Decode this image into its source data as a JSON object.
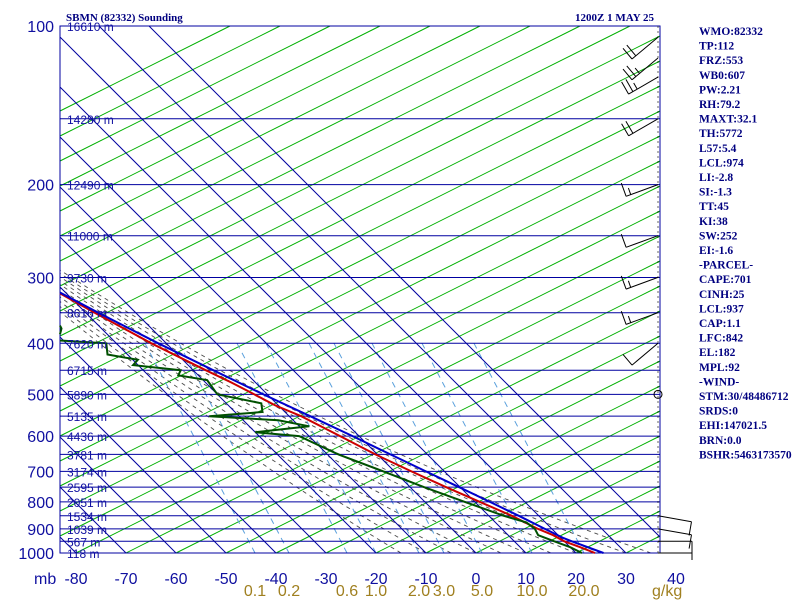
{
  "chart_data": {
    "type": "line",
    "title": "SBMN (82332) Sounding",
    "valid_time": "1200Z  1 MAY 25",
    "pressure_axis_label": "mb",
    "pressure_ticks": [
      "100",
      "200",
      "300",
      "400",
      "500",
      "600",
      "700",
      "800",
      "900",
      "1000"
    ],
    "temperature_ticks": [
      "-80",
      "-70",
      "-60",
      "-50",
      "-40",
      "-30",
      "-20",
      "-10",
      "0",
      "10",
      "20",
      "30",
      "40"
    ],
    "mixing_ratio_labels": [
      "0.1",
      "0.2",
      "0.6",
      "1.0",
      "2.0",
      "3.0",
      "5.0",
      "10.0",
      "20.0"
    ],
    "mixing_ratio_unit": "g/kg",
    "height_labels": [
      {
        "p": 100,
        "text": "16610 m"
      },
      {
        "p": 150,
        "text": "14280 m"
      },
      {
        "p": 200,
        "text": "12490 m"
      },
      {
        "p": 250,
        "text": "11000 m"
      },
      {
        "p": 300,
        "text": "9730 m"
      },
      {
        "p": 350,
        "text": "8616 m"
      },
      {
        "p": 400,
        "text": "7620 m"
      },
      {
        "p": 450,
        "text": "6715 m"
      },
      {
        "p": 500,
        "text": "5890 m"
      },
      {
        "p": 550,
        "text": "5135 m"
      },
      {
        "p": 600,
        "text": "4436 m"
      },
      {
        "p": 650,
        "text": "3781 m"
      },
      {
        "p": 700,
        "text": "3174 m"
      },
      {
        "p": 750,
        "text": "2595 m"
      },
      {
        "p": 800,
        "text": "2051 m"
      },
      {
        "p": 850,
        "text": "1534 m"
      },
      {
        "p": 900,
        "text": "1039 m"
      },
      {
        "p": 950,
        "text": "567 m"
      },
      {
        "p": 1000,
        "text": "118 m"
      }
    ],
    "xlim": [
      -80,
      40
    ],
    "ylim": [
      100,
      1000
    ],
    "series": [
      {
        "key": "temperature",
        "color": "#cc0000",
        "points": [
          [
            1000,
            23.8
          ],
          [
            975,
            22.0
          ],
          [
            950,
            20.0
          ],
          [
            925,
            19.0
          ],
          [
            900,
            17.2
          ],
          [
            850,
            14.6
          ],
          [
            800,
            11.0
          ],
          [
            750,
            7.2
          ],
          [
            700,
            3.4
          ],
          [
            650,
            -0.4
          ],
          [
            600,
            -3.8
          ],
          [
            550,
            -7.6
          ],
          [
            525,
            -10.6
          ],
          [
            500,
            -12.6
          ],
          [
            475,
            -14.8
          ],
          [
            450,
            -17.5
          ],
          [
            400,
            -23.0
          ],
          [
            350,
            -28.2
          ],
          [
            300,
            -33.8
          ],
          [
            250,
            -41.5
          ],
          [
            200,
            -49.2
          ],
          [
            150,
            -58.0
          ],
          [
            100,
            -73.0
          ]
        ]
      },
      {
        "key": "dewpoint",
        "color": "#005000",
        "points": [
          [
            1000,
            21.2
          ],
          [
            975,
            20.0
          ],
          [
            950,
            18.0
          ],
          [
            925,
            16.0
          ],
          [
            900,
            16.6
          ],
          [
            875,
            16.2
          ],
          [
            850,
            13.0
          ],
          [
            800,
            8.0
          ],
          [
            750,
            2.8
          ],
          [
            700,
            -2.2
          ],
          [
            650,
            -7.8
          ],
          [
            600,
            -12.0
          ],
          [
            590,
            -20.0
          ],
          [
            575,
            -8.0
          ],
          [
            560,
            -13.0
          ],
          [
            550,
            -26.0
          ],
          [
            540,
            -14.5
          ],
          [
            520,
            -13.0
          ],
          [
            500,
            -20.0
          ],
          [
            470,
            -19.2
          ],
          [
            460,
            -24.0
          ],
          [
            450,
            -22.5
          ],
          [
            440,
            -31.0
          ],
          [
            430,
            -29.0
          ],
          [
            420,
            -34.0
          ],
          [
            400,
            -32.0
          ],
          [
            395,
            -41.0
          ],
          [
            375,
            -38.0
          ],
          [
            350,
            -36.5
          ],
          [
            330,
            -41.5
          ],
          [
            310,
            -39.0
          ],
          [
            300,
            -41.0
          ],
          [
            290,
            -40.8
          ],
          [
            270,
            -44.0
          ],
          [
            255,
            -53.0
          ],
          [
            250,
            -55.0
          ],
          [
            240,
            -57.5
          ],
          [
            235,
            -58.5
          ],
          [
            215,
            -59.0
          ],
          [
            200,
            -63.5
          ],
          [
            190,
            -67.0
          ],
          [
            180,
            -70.0
          ],
          [
            165,
            -69.5
          ],
          [
            150,
            -70.5
          ],
          [
            135,
            -74.2
          ],
          [
            120,
            -76.5
          ],
          [
            115,
            -78.0
          ]
        ]
      },
      {
        "key": "parcel",
        "color": "#0000cc",
        "points": [
          [
            1000,
            25.5
          ],
          [
            950,
            21.5
          ],
          [
            937,
            20.5
          ],
          [
            900,
            18.6
          ],
          [
            850,
            16.0
          ],
          [
            800,
            13.0
          ],
          [
            750,
            9.8
          ],
          [
            700,
            6.3
          ],
          [
            650,
            2.6
          ],
          [
            600,
            -1.3
          ],
          [
            550,
            -5.8
          ],
          [
            500,
            -10.8
          ],
          [
            450,
            -16.0
          ],
          [
            400,
            -21.6
          ],
          [
            350,
            -27.5
          ],
          [
            300,
            -33.8
          ],
          [
            250,
            -41.0
          ],
          [
            200,
            -49.5
          ],
          [
            150,
            -60.0
          ],
          [
            100,
            -75.0
          ]
        ]
      }
    ],
    "grid": true
  },
  "indices": [
    "WMO:82332",
    "TP:112",
    "FRZ:553",
    "WB0:607",
    "PW:2.21",
    "RH:79.2",
    "MAXT:32.1",
    "TH:5772",
    "L57:5.4",
    "LCL:974",
    "LI:-2.8",
    "SI:-1.3",
    "TT:45",
    "KI:38",
    "SW:252",
    "EI:-1.6",
    "-PARCEL-",
    "CAPE:701",
    "CINH:25",
    "LCL:937",
    "CAP:1.1",
    "LFC:842",
    "EL:182",
    "MPL:92",
    "-WIND-",
    "STM:30/48486712",
    "SRDS:0",
    "EHI:147021.5",
    "BRN:0.0",
    "BSHR:5463173570"
  ],
  "colors": {
    "isobar": "#0000a0",
    "isotherm": "#0000a0",
    "dry_adiabat": "#00b000",
    "moist_adiabat": "#4a4a4a",
    "mixing_ratio": "#5aa0dc",
    "temperature": "#cc0000",
    "dewpoint": "#005000",
    "parcel": "#0000cc",
    "wind_barb": "#000000"
  },
  "wind_barbs": [
    {
      "p": 1000,
      "dir": 90,
      "spd": 5
    },
    {
      "p": 950,
      "dir": 90,
      "spd": 10
    },
    {
      "p": 900,
      "dir": 100,
      "spd": 10
    },
    {
      "p": 850,
      "dir": 100,
      "spd": 10
    },
    {
      "p": 500,
      "dir": 0,
      "spd": 0
    },
    {
      "p": 400,
      "dir": 230,
      "spd": 10
    },
    {
      "p": 350,
      "dir": 250,
      "spd": 15
    },
    {
      "p": 300,
      "dir": 250,
      "spd": 15
    },
    {
      "p": 250,
      "dir": 250,
      "spd": 10
    },
    {
      "p": 200,
      "dir": 250,
      "spd": 15
    },
    {
      "p": 150,
      "dir": 240,
      "spd": 20
    },
    {
      "p": 125,
      "dir": 240,
      "spd": 25
    },
    {
      "p": 115,
      "dir": 230,
      "spd": 25
    },
    {
      "p": 105,
      "dir": 230,
      "spd": 20
    }
  ]
}
